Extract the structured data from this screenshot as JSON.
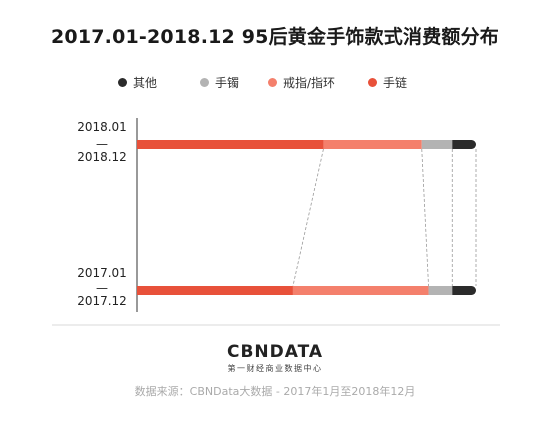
{
  "chart_data": {
    "type": "bar",
    "title": "2017.01-2018.12 95后黄金手饰款式消费额分布",
    "stacked": true,
    "normalized": true,
    "legend_position": "top",
    "categories": [
      {
        "line1": "2018.01",
        "dash": "—",
        "line2": "2018.12"
      },
      {
        "line1": "2017.01",
        "dash": "—",
        "line2": "2017.12"
      }
    ],
    "series": [
      {
        "name": "手链",
        "color": "#e8513a",
        "values": [
          55,
          46
        ]
      },
      {
        "name": "戒指/指环",
        "color": "#f4806c",
        "values": [
          29,
          40
        ]
      },
      {
        "name": "手镯",
        "color": "#b3b3b3",
        "values": [
          9,
          7
        ]
      },
      {
        "name": "其他",
        "color": "#2b2b2b",
        "values": [
          7,
          7
        ]
      }
    ],
    "legend_order": [
      "其他",
      "手镯",
      "戒指/指环",
      "手链"
    ]
  },
  "footer": {
    "logo": "CBNDATA",
    "logo_sub": "第一财经商业数据中心",
    "source": "数据来源：CBNData大数据 - 2017年1月至2018年12月"
  }
}
